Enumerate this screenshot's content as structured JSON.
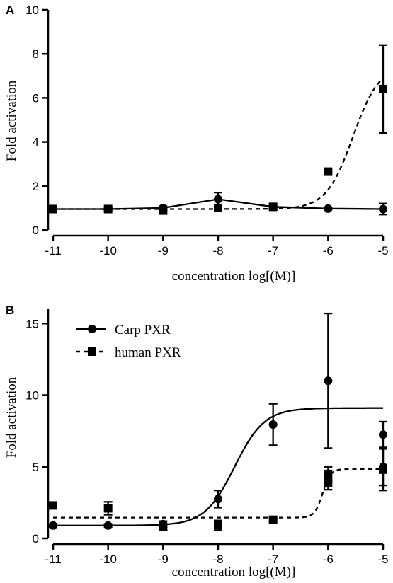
{
  "chart_data": [
    {
      "panel": "A",
      "type": "line",
      "xlabel": "concentration log[(M)]",
      "ylabel": "Fold activation",
      "xlim": [
        -11,
        -5
      ],
      "ylim": [
        0,
        10
      ],
      "xticks": [
        -11,
        -10,
        -9,
        -8,
        -7,
        -6,
        -5
      ],
      "yticks": [
        0,
        2,
        4,
        6,
        8,
        10
      ],
      "legend": false,
      "series": [
        {
          "style": "solid",
          "marker": "circle",
          "color": "#000000",
          "x": [
            -11,
            -10,
            -9,
            -8,
            -7,
            -6,
            -5
          ],
          "y": [
            0.95,
            0.95,
            1.0,
            1.4,
            1.05,
            0.97,
            0.95
          ],
          "err": [
            0.05,
            0.05,
            0.08,
            0.3,
            0.1,
            0.05,
            0.25
          ],
          "fit": "line"
        },
        {
          "style": "dashed",
          "marker": "square",
          "color": "#000000",
          "x": [
            -11,
            -10,
            -9,
            -8,
            -7,
            -6,
            -5
          ],
          "y": [
            0.95,
            0.95,
            0.88,
            1.0,
            1.05,
            2.65,
            6.4
          ],
          "err": [
            0.05,
            0.05,
            0.05,
            0.05,
            0.05,
            0.05,
            2.0
          ],
          "fit": {
            "bottom": 0.95,
            "top": 7.5,
            "logEC50": -5.55,
            "hill": 1.8
          }
        }
      ]
    },
    {
      "panel": "B",
      "type": "line",
      "xlabel": "concentration log[(M)]",
      "ylabel": "Fold activation",
      "xlim": [
        -11,
        -5
      ],
      "ylim": [
        0,
        16
      ],
      "xticks": [
        -11,
        -10,
        -9,
        -8,
        -7,
        -6,
        -5
      ],
      "yticks": [
        0,
        5,
        10,
        15
      ],
      "legend": true,
      "legend_position": "top-left",
      "series": [
        {
          "name": "Carp PXR",
          "style": "solid",
          "marker": "circle",
          "color": "#000000",
          "x": [
            -11,
            -10,
            -9,
            -8,
            -7,
            -6,
            -5,
            -5
          ],
          "y": [
            0.9,
            0.9,
            1.0,
            2.75,
            7.95,
            11.0,
            7.25,
            5.0
          ],
          "err": [
            0.1,
            0.1,
            0.2,
            0.6,
            1.45,
            4.7,
            0.9,
            1.3
          ],
          "fit": {
            "bottom": 0.9,
            "top": 9.1,
            "logEC50": -7.7,
            "hill": 1.6
          }
        },
        {
          "name": "human PXR",
          "style": "dashed",
          "marker": "square",
          "color": "#000000",
          "x": [
            -11,
            -10,
            -9,
            -8,
            -7,
            -6,
            -6,
            -5
          ],
          "y": [
            2.3,
            2.1,
            0.8,
            0.9,
            1.3,
            3.9,
            4.5,
            4.8
          ],
          "err": [
            0.2,
            0.45,
            0.2,
            0.35,
            0.1,
            0.5,
            0.5,
            1.45
          ],
          "fit": {
            "bottom": 1.45,
            "top": 4.85,
            "logEC50": -6.1,
            "hill": 6
          }
        }
      ]
    }
  ]
}
